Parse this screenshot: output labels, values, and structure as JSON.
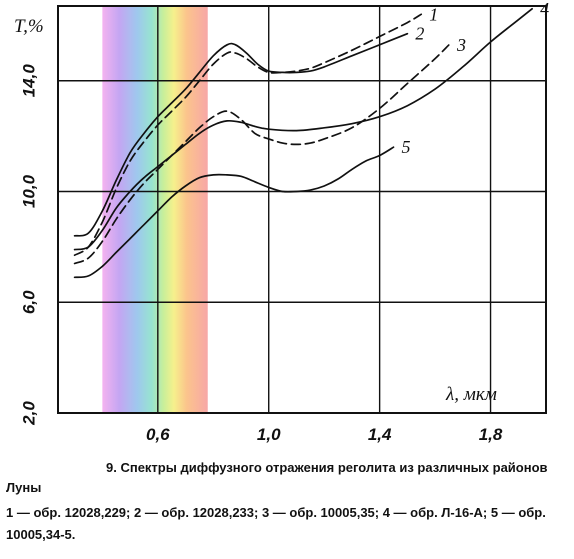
{
  "chart_data": {
    "type": "line",
    "xlabel": "λ, мкм",
    "ylabel": "T,%",
    "xlim": [
      0.24,
      2.0
    ],
    "ylim": [
      2.0,
      16.7
    ],
    "x_ticks": [
      0.6,
      1.0,
      1.4,
      1.8
    ],
    "x_tick_labels": [
      "0,6",
      "1,0",
      "1,4",
      "1,8"
    ],
    "y_ticks": [
      2.0,
      6.0,
      10.0,
      14.0
    ],
    "y_tick_labels": [
      "2,0",
      "6,0",
      "10,0",
      "14,0"
    ],
    "grid": true,
    "spectrum_band": [
      0.4,
      0.78
    ],
    "series": [
      {
        "name": "1",
        "style": "dashed",
        "x": [
          0.3,
          0.35,
          0.4,
          0.45,
          0.5,
          0.55,
          0.6,
          0.65,
          0.7,
          0.75,
          0.8,
          0.85,
          0.88,
          0.92,
          0.96,
          1.0,
          1.05,
          1.1,
          1.15,
          1.2,
          1.3,
          1.4,
          1.5,
          1.55
        ],
        "y": [
          7.7,
          8.0,
          8.9,
          10.1,
          11.1,
          11.8,
          12.4,
          12.9,
          13.4,
          14.0,
          14.6,
          15.0,
          15.0,
          14.8,
          14.5,
          14.3,
          14.3,
          14.35,
          14.45,
          14.65,
          15.1,
          15.6,
          16.1,
          16.4
        ]
      },
      {
        "name": "2",
        "style": "solid",
        "x": [
          0.3,
          0.35,
          0.4,
          0.45,
          0.5,
          0.55,
          0.6,
          0.65,
          0.7,
          0.75,
          0.8,
          0.85,
          0.88,
          0.92,
          0.96,
          1.0,
          1.05,
          1.1,
          1.15,
          1.2,
          1.3,
          1.4,
          1.5
        ],
        "y": [
          8.4,
          8.5,
          9.3,
          10.4,
          11.4,
          12.1,
          12.7,
          13.2,
          13.7,
          14.3,
          14.9,
          15.3,
          15.3,
          15.0,
          14.6,
          14.35,
          14.3,
          14.3,
          14.35,
          14.5,
          14.9,
          15.3,
          15.7
        ]
      },
      {
        "name": "3",
        "style": "dashed",
        "x": [
          0.3,
          0.35,
          0.4,
          0.45,
          0.5,
          0.55,
          0.6,
          0.65,
          0.7,
          0.75,
          0.8,
          0.85,
          0.9,
          0.95,
          1.0,
          1.05,
          1.1,
          1.15,
          1.2,
          1.3,
          1.4,
          1.5,
          1.6,
          1.65
        ],
        "y": [
          7.4,
          7.6,
          8.2,
          9.0,
          9.7,
          10.3,
          10.8,
          11.3,
          11.8,
          12.3,
          12.7,
          12.9,
          12.6,
          12.1,
          11.9,
          11.75,
          11.7,
          11.75,
          11.9,
          12.3,
          13.0,
          13.9,
          14.8,
          15.3
        ]
      },
      {
        "name": "4",
        "style": "solid",
        "x": [
          0.3,
          0.35,
          0.4,
          0.45,
          0.5,
          0.55,
          0.6,
          0.65,
          0.7,
          0.75,
          0.8,
          0.85,
          0.9,
          0.95,
          1.0,
          1.1,
          1.2,
          1.3,
          1.4,
          1.5,
          1.6,
          1.7,
          1.8,
          1.9,
          1.95
        ],
        "y": [
          7.9,
          8.0,
          8.6,
          9.4,
          10.0,
          10.5,
          10.9,
          11.3,
          11.7,
          12.1,
          12.4,
          12.55,
          12.5,
          12.35,
          12.25,
          12.2,
          12.3,
          12.45,
          12.7,
          13.1,
          13.7,
          14.5,
          15.4,
          16.2,
          16.6
        ]
      },
      {
        "name": "5",
        "style": "solid",
        "x": [
          0.3,
          0.35,
          0.4,
          0.45,
          0.5,
          0.55,
          0.6,
          0.65,
          0.7,
          0.75,
          0.8,
          0.85,
          0.9,
          0.95,
          1.0,
          1.05,
          1.1,
          1.15,
          1.2,
          1.25,
          1.3,
          1.35,
          1.4,
          1.45
        ],
        "y": [
          6.9,
          6.95,
          7.3,
          7.8,
          8.3,
          8.8,
          9.3,
          9.8,
          10.2,
          10.5,
          10.6,
          10.6,
          10.55,
          10.35,
          10.15,
          10.0,
          10.0,
          10.05,
          10.2,
          10.45,
          10.8,
          11.1,
          11.3,
          11.6
        ]
      }
    ]
  },
  "caption": {
    "title": "9. Спектры диффузного отражения реголита из различных районов Луны",
    "legend": "1 — обр. 12028,229; 2 — обр. 12028,233; 3 — обр. 10005,35; 4 — обр. Л-16-А; 5 — обр. 10005,34-5."
  }
}
